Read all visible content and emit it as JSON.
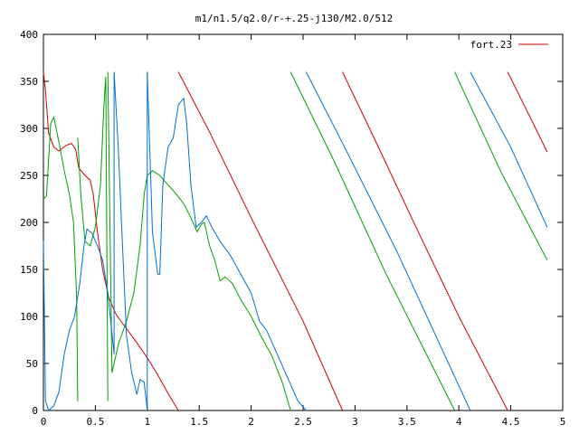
{
  "chart_data": {
    "type": "line",
    "title": "m1/n1.5/q2.0/r-+.25-j130/M2.0/512",
    "xlabel": "",
    "ylabel": "",
    "xlim": [
      0,
      5
    ],
    "ylim": [
      0,
      400
    ],
    "x_ticks": [
      0,
      0.5,
      1,
      1.5,
      2,
      2.5,
      3,
      3.5,
      4,
      4.5,
      5
    ],
    "y_ticks": [
      0,
      50,
      100,
      150,
      200,
      250,
      300,
      350,
      400
    ],
    "x_tick_labels": [
      "0",
      "0.5",
      "1",
      "1.5",
      "2",
      "2.5",
      "3",
      "3.5",
      "4",
      "4.5",
      "5"
    ],
    "y_tick_labels": [
      "0",
      "50",
      "100",
      "150",
      "200",
      "250",
      "300",
      "350",
      "400"
    ],
    "grid": false,
    "legend": {
      "position": "top-right",
      "entries": [
        "fort.23"
      ]
    },
    "series": [
      {
        "name": "fort.23",
        "color": "#cc0000",
        "segments": [
          [
            [
              0,
              360
            ],
            [
              0.02,
              340
            ],
            [
              0.05,
              295
            ],
            [
              0.1,
              280
            ],
            [
              0.15,
              276
            ],
            [
              0.22,
              282
            ],
            [
              0.27,
              284
            ],
            [
              0.31,
              278
            ],
            [
              0.34,
              258
            ],
            [
              0.4,
              250
            ],
            [
              0.45,
              245
            ],
            [
              0.48,
              230
            ],
            [
              0.52,
              190
            ],
            [
              0.57,
              150
            ],
            [
              0.63,
              120
            ],
            [
              0.7,
              102
            ],
            [
              0.8,
              87
            ],
            [
              0.9,
              72
            ],
            [
              1.0,
              56
            ],
            [
              1.1,
              38
            ],
            [
              1.2,
              18
            ],
            [
              1.3,
              0
            ]
          ],
          [
            [
              1.3,
              360
            ],
            [
              1.6,
              296
            ],
            [
              2.0,
              205
            ],
            [
              2.5,
              95
            ],
            [
              2.88,
              0
            ]
          ],
          [
            [
              2.88,
              360
            ],
            [
              3.2,
              286
            ],
            [
              3.6,
              192
            ],
            [
              4.0,
              100
            ],
            [
              4.47,
              0
            ]
          ],
          [
            [
              4.47,
              360
            ],
            [
              4.65,
              320
            ],
            [
              4.85,
              275
            ]
          ]
        ]
      },
      {
        "name": "",
        "color": "#00a000",
        "segments": [
          [
            [
              0,
              225
            ],
            [
              0.03,
              228
            ],
            [
              0.07,
              305
            ],
            [
              0.1,
              312
            ],
            [
              0.15,
              285
            ],
            [
              0.2,
              255
            ],
            [
              0.25,
              230
            ],
            [
              0.29,
              200
            ],
            [
              0.32,
              120
            ],
            [
              0.33,
              10
            ]
          ],
          [
            [
              0.33,
              290
            ],
            [
              0.36,
              230
            ],
            [
              0.4,
              180
            ],
            [
              0.45,
              175
            ],
            [
              0.5,
              195
            ],
            [
              0.55,
              240
            ],
            [
              0.58,
              320
            ],
            [
              0.6,
              355
            ],
            [
              0.62,
              10
            ]
          ],
          [
            [
              0.62,
              360
            ],
            [
              0.66,
              40
            ],
            [
              0.72,
              70
            ],
            [
              0.8,
              95
            ],
            [
              0.87,
              125
            ],
            [
              0.93,
              175
            ],
            [
              0.97,
              230
            ],
            [
              1.0,
              250
            ],
            [
              1.05,
              255
            ],
            [
              1.12,
              250
            ],
            [
              1.2,
              240
            ],
            [
              1.28,
              230
            ],
            [
              1.35,
              220
            ],
            [
              1.42,
              205
            ],
            [
              1.48,
              190
            ],
            [
              1.52,
              198
            ],
            [
              1.55,
              200
            ],
            [
              1.6,
              175
            ],
            [
              1.65,
              160
            ],
            [
              1.7,
              138
            ],
            [
              1.75,
              142
            ],
            [
              1.82,
              135
            ],
            [
              1.9,
              118
            ],
            [
              2.0,
              100
            ],
            [
              2.1,
              78
            ],
            [
              2.2,
              58
            ],
            [
              2.3,
              30
            ],
            [
              2.38,
              0
            ]
          ],
          [
            [
              2.38,
              360
            ],
            [
              2.8,
              265
            ],
            [
              3.3,
              145
            ],
            [
              3.96,
              0
            ]
          ],
          [
            [
              3.96,
              360
            ],
            [
              4.4,
              255
            ],
            [
              4.85,
              160
            ]
          ]
        ]
      },
      {
        "name": "",
        "color": "#0070cc",
        "segments": [
          [
            [
              0,
              180
            ],
            [
              0.02,
              10
            ],
            [
              0.05,
              0
            ],
            [
              0.1,
              5
            ],
            [
              0.15,
              20
            ],
            [
              0.2,
              60
            ],
            [
              0.25,
              85
            ],
            [
              0.3,
              100
            ],
            [
              0.35,
              135
            ],
            [
              0.39,
              175
            ],
            [
              0.42,
              193
            ],
            [
              0.47,
              188
            ],
            [
              0.52,
              175
            ],
            [
              0.57,
              160
            ],
            [
              0.62,
              125
            ],
            [
              0.68,
              60
            ],
            [
              0.68,
              360
            ]
          ],
          [
            [
              0.68,
              360
            ],
            [
              0.72,
              280
            ],
            [
              0.76,
              180
            ],
            [
              0.8,
              80
            ],
            [
              0.85,
              40
            ],
            [
              0.9,
              17
            ],
            [
              0.93,
              33
            ],
            [
              0.97,
              30
            ],
            [
              1.0,
              0
            ],
            [
              1.0,
              360
            ]
          ],
          [
            [
              1.0,
              360
            ],
            [
              1.05,
              190
            ],
            [
              1.1,
              145
            ],
            [
              1.12,
              145
            ],
            [
              1.15,
              240
            ],
            [
              1.2,
              280
            ],
            [
              1.25,
              290
            ],
            [
              1.3,
              325
            ],
            [
              1.35,
              332
            ],
            [
              1.38,
              305
            ],
            [
              1.42,
              240
            ],
            [
              1.47,
              195
            ],
            [
              1.52,
              200
            ],
            [
              1.57,
              207
            ],
            [
              1.62,
              195
            ],
            [
              1.7,
              180
            ],
            [
              1.8,
              165
            ],
            [
              1.9,
              145
            ],
            [
              2.0,
              125
            ],
            [
              2.08,
              95
            ],
            [
              2.15,
              85
            ],
            [
              2.25,
              60
            ],
            [
              2.35,
              35
            ],
            [
              2.45,
              10
            ],
            [
              2.53,
              0
            ]
          ],
          [
            [
              2.53,
              360
            ],
            [
              2.9,
              280
            ],
            [
              3.4,
              170
            ],
            [
              4.11,
              0
            ]
          ],
          [
            [
              4.11,
              360
            ],
            [
              4.5,
              280
            ],
            [
              4.85,
              195
            ]
          ]
        ]
      }
    ]
  }
}
